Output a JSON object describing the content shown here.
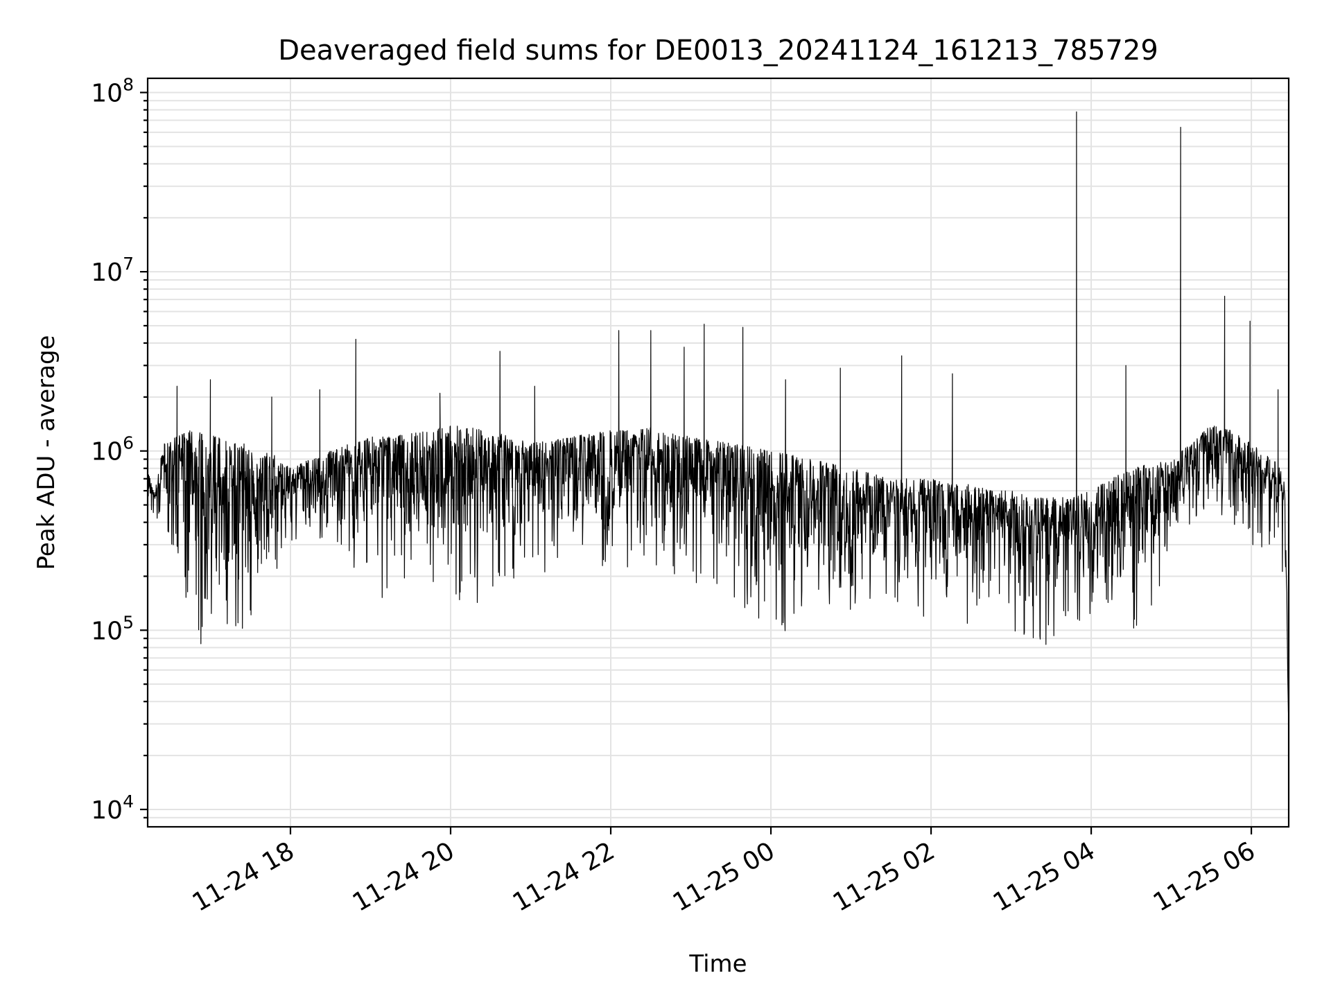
{
  "chart_data": {
    "type": "line",
    "title": "Deaveraged field sums for DE0013_20241124_161213_785729",
    "xlabel": "Time",
    "ylabel": "Peak ADU - average",
    "yscale": "log",
    "ylim": [
      8000,
      120000000
    ],
    "xlim": [
      "2024-11-24 16:13",
      "2024-11-25 06:28"
    ],
    "grid": true,
    "legend": "none",
    "line_color": "#000000",
    "x_ticks": [
      {
        "value": "2024-11-24 18:00",
        "label": "11-24 18"
      },
      {
        "value": "2024-11-24 20:00",
        "label": "11-24 20"
      },
      {
        "value": "2024-11-24 22:00",
        "label": "11-24 22"
      },
      {
        "value": "2024-11-25 00:00",
        "label": "11-25 00"
      },
      {
        "value": "2024-11-25 02:00",
        "label": "11-25 02"
      },
      {
        "value": "2024-11-25 04:00",
        "label": "11-25 04"
      },
      {
        "value": "2024-11-25 06:00",
        "label": "11-25 06"
      }
    ],
    "y_ticks": [
      {
        "value": 10000,
        "base": "10",
        "exp": "4"
      },
      {
        "value": 100000,
        "base": "10",
        "exp": "5"
      },
      {
        "value": 1000000,
        "base": "10",
        "exp": "6"
      },
      {
        "value": 10000000,
        "base": "10",
        "exp": "7"
      },
      {
        "value": 100000000,
        "base": "10",
        "exp": "8"
      }
    ],
    "series": [
      {
        "x": [
          "2024-11-24 16:13",
          "2024-11-24 16:18",
          "2024-11-24 16:25",
          "2024-11-24 16:35",
          "2024-11-24 16:45",
          "2024-11-24 16:55",
          "2024-11-24 17:05",
          "2024-11-24 17:15",
          "2024-11-24 17:25",
          "2024-11-24 17:35",
          "2024-11-24 17:45",
          "2024-11-24 18:00",
          "2024-11-24 18:15",
          "2024-11-24 18:30",
          "2024-11-24 18:45",
          "2024-11-24 19:00",
          "2024-11-24 19:15",
          "2024-11-24 19:30",
          "2024-11-24 19:45",
          "2024-11-24 20:00",
          "2024-11-24 20:15",
          "2024-11-24 20:30",
          "2024-11-24 20:45",
          "2024-11-24 21:00",
          "2024-11-24 21:15",
          "2024-11-24 21:30",
          "2024-11-24 21:45",
          "2024-11-24 22:00",
          "2024-11-24 22:15",
          "2024-11-24 22:30",
          "2024-11-24 22:45",
          "2024-11-24 23:00",
          "2024-11-24 23:15",
          "2024-11-24 23:30",
          "2024-11-24 23:45",
          "2024-11-25 00:00",
          "2024-11-25 00:15",
          "2024-11-25 00:30",
          "2024-11-25 00:45",
          "2024-11-25 01:00",
          "2024-11-25 01:15",
          "2024-11-25 01:30",
          "2024-11-25 01:45",
          "2024-11-25 02:00",
          "2024-11-25 02:15",
          "2024-11-25 02:30",
          "2024-11-25 02:45",
          "2024-11-25 03:00",
          "2024-11-25 03:15",
          "2024-11-25 03:30",
          "2024-11-25 03:45",
          "2024-11-25 04:00",
          "2024-11-25 04:15",
          "2024-11-25 04:30",
          "2024-11-25 04:45",
          "2024-11-25 05:00",
          "2024-11-25 05:15",
          "2024-11-25 05:30",
          "2024-11-25 05:45",
          "2024-11-25 06:00",
          "2024-11-25 06:15",
          "2024-11-25 06:25",
          "2024-11-25 06:28"
        ],
        "upper": [
          800000,
          580000,
          1100000,
          1200000,
          1300000,
          1250000,
          1200000,
          1100000,
          1100000,
          900000,
          1000000,
          800000,
          900000,
          1000000,
          1100000,
          1200000,
          1200000,
          1250000,
          1300000,
          1400000,
          1350000,
          1300000,
          1200000,
          1100000,
          1150000,
          1200000,
          1250000,
          1300000,
          1300000,
          1350000,
          1250000,
          1200000,
          1150000,
          1100000,
          1050000,
          1000000,
          950000,
          900000,
          850000,
          800000,
          750000,
          700000,
          700000,
          700000,
          650000,
          650000,
          600000,
          600000,
          550000,
          550000,
          550000,
          600000,
          700000,
          800000,
          850000,
          900000,
          1100000,
          1400000,
          1300000,
          1100000,
          900000,
          800000,
          30000
        ],
        "lower": [
          400000,
          420000,
          350000,
          250000,
          100000,
          80000,
          70000,
          90000,
          100000,
          120000,
          150000,
          300000,
          350000,
          300000,
          200000,
          150000,
          150000,
          200000,
          180000,
          150000,
          100000,
          120000,
          150000,
          180000,
          200000,
          250000,
          250000,
          200000,
          200000,
          180000,
          200000,
          180000,
          150000,
          150000,
          120000,
          100000,
          90000,
          100000,
          110000,
          120000,
          150000,
          150000,
          120000,
          100000,
          90000,
          100000,
          120000,
          100000,
          80000,
          80000,
          100000,
          120000,
          110000,
          100000,
          120000,
          300000,
          400000,
          500000,
          350000,
          300000,
          250000,
          200000,
          12000
        ],
        "spikes": [
          {
            "x": "2024-11-24 16:35",
            "y": 2300000
          },
          {
            "x": "2024-11-24 17:00",
            "y": 2500000
          },
          {
            "x": "2024-11-24 17:46",
            "y": 2000000
          },
          {
            "x": "2024-11-24 18:22",
            "y": 2200000
          },
          {
            "x": "2024-11-24 18:49",
            "y": 4200000
          },
          {
            "x": "2024-11-24 19:52",
            "y": 2100000
          },
          {
            "x": "2024-11-24 20:37",
            "y": 3600000
          },
          {
            "x": "2024-11-24 21:03",
            "y": 2300000
          },
          {
            "x": "2024-11-24 22:06",
            "y": 4700000
          },
          {
            "x": "2024-11-24 22:30",
            "y": 4700000
          },
          {
            "x": "2024-11-24 22:55",
            "y": 3800000
          },
          {
            "x": "2024-11-24 23:10",
            "y": 5100000
          },
          {
            "x": "2024-11-24 23:39",
            "y": 4900000
          },
          {
            "x": "2024-11-25 00:11",
            "y": 2500000
          },
          {
            "x": "2024-11-25 00:52",
            "y": 2900000
          },
          {
            "x": "2024-11-25 01:38",
            "y": 3400000
          },
          {
            "x": "2024-11-25 02:16",
            "y": 2700000
          },
          {
            "x": "2024-11-25 03:49",
            "y": 78000000
          },
          {
            "x": "2024-11-25 04:26",
            "y": 3000000
          },
          {
            "x": "2024-11-25 05:07",
            "y": 64000000
          },
          {
            "x": "2024-11-25 05:40",
            "y": 7300000
          },
          {
            "x": "2024-11-25 05:59",
            "y": 5300000
          },
          {
            "x": "2024-11-25 06:20",
            "y": 2200000
          }
        ]
      }
    ]
  }
}
